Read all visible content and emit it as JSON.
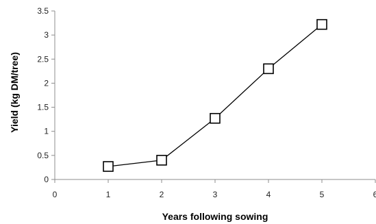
{
  "chart_data": {
    "type": "line",
    "title": "",
    "xlabel": "Years following sowing",
    "ylabel": "Yield (kg DM/tree)",
    "xlim": [
      0,
      6
    ],
    "ylim": [
      0,
      3.5
    ],
    "x_ticks": [
      "0",
      "1",
      "2",
      "3",
      "4",
      "5",
      "6"
    ],
    "y_ticks": [
      "0",
      "0.5",
      "1",
      "1.5",
      "2",
      "2.5",
      "3",
      "3.5"
    ],
    "grid": false,
    "legend": "none",
    "series": [
      {
        "x": [
          1,
          2,
          3,
          4,
          5
        ],
        "values": [
          0.27,
          0.4,
          1.27,
          2.3,
          3.22
        ],
        "marker": "open-square",
        "color": "#000000"
      }
    ]
  }
}
